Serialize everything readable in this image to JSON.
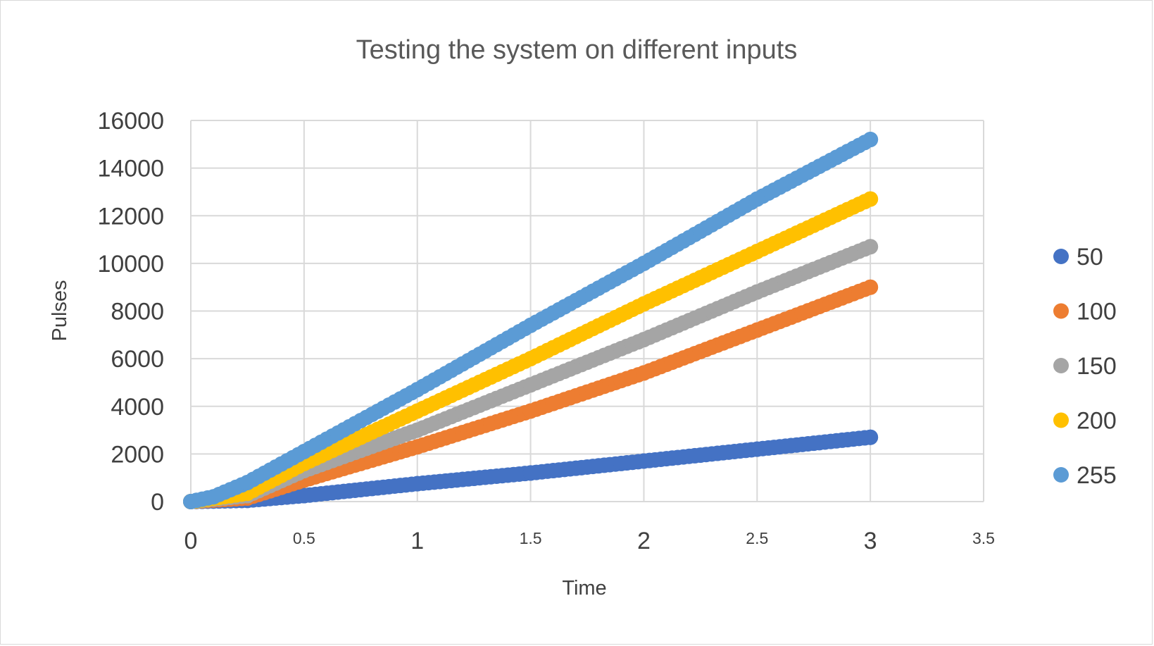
{
  "chart_data": {
    "type": "scatter",
    "title": "Testing the system on different inputs",
    "xlabel": "Time",
    "ylabel": "Pulses",
    "xlim": [
      0,
      3.5
    ],
    "ylim": [
      0,
      16000
    ],
    "x_ticks": [
      "0",
      "0.5",
      "1",
      "1.5",
      "2",
      "2.5",
      "3",
      "3.5"
    ],
    "y_ticks": [
      "0",
      "2000",
      "4000",
      "6000",
      "8000",
      "10000",
      "12000",
      "14000",
      "16000"
    ],
    "grid": true,
    "legend_position": "right",
    "series": [
      {
        "name": "50",
        "color": "#4472c4",
        "points": [
          [
            0,
            0
          ],
          [
            0.25,
            50
          ],
          [
            0.5,
            250
          ],
          [
            1,
            750
          ],
          [
            1.5,
            1200
          ],
          [
            2,
            1700
          ],
          [
            2.5,
            2200
          ],
          [
            3,
            2700
          ]
        ]
      },
      {
        "name": "100",
        "color": "#ed7d31",
        "points": [
          [
            0,
            0
          ],
          [
            0.25,
            150
          ],
          [
            0.5,
            900
          ],
          [
            1,
            2300
          ],
          [
            1.5,
            3800
          ],
          [
            2,
            5400
          ],
          [
            2.5,
            7200
          ],
          [
            3,
            9000
          ]
        ]
      },
      {
        "name": "150",
        "color": "#a5a5a5",
        "points": [
          [
            0,
            0
          ],
          [
            0.25,
            250
          ],
          [
            0.5,
            1300
          ],
          [
            1,
            3000
          ],
          [
            1.5,
            4900
          ],
          [
            2,
            6800
          ],
          [
            2.5,
            8800
          ],
          [
            3,
            10700
          ]
        ]
      },
      {
        "name": "200",
        "color": "#ffc000",
        "points": [
          [
            0,
            0
          ],
          [
            0.25,
            350
          ],
          [
            0.5,
            1600
          ],
          [
            1,
            3800
          ],
          [
            1.5,
            6000
          ],
          [
            2,
            8300
          ],
          [
            2.5,
            10500
          ],
          [
            3,
            12700
          ]
        ]
      },
      {
        "name": "255",
        "color": "#5b9bd5",
        "points": [
          [
            0,
            0
          ],
          [
            0.1,
            200
          ],
          [
            0.25,
            800
          ],
          [
            0.5,
            2100
          ],
          [
            1,
            4700
          ],
          [
            1.5,
            7400
          ],
          [
            2,
            10000
          ],
          [
            2.5,
            12700
          ],
          [
            3,
            15200
          ]
        ]
      }
    ]
  }
}
